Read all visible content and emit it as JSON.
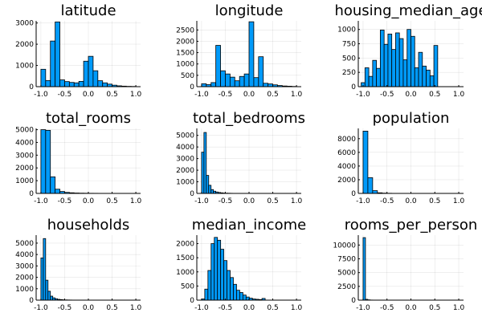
{
  "chart_data": [
    {
      "type": "bar",
      "title": "latitude",
      "xlabel": "",
      "ylabel": "",
      "xlim": [
        -1.1,
        1.1
      ],
      "ylim": [
        0,
        3100
      ],
      "xticks": [
        -1.0,
        -0.5,
        0.0,
        0.5,
        1.0
      ],
      "xtick_labels": [
        "-1.0",
        "-0.5",
        "0.0",
        "0.5",
        "1.0"
      ],
      "yticks": [
        0,
        1000,
        2000,
        3000
      ],
      "ytick_labels": [
        "0",
        "1000",
        "2000",
        "3000"
      ],
      "bin_start": -1.0,
      "bin_width": 0.1,
      "values": [
        820,
        290,
        2150,
        3050,
        320,
        240,
        200,
        180,
        250,
        1200,
        1430,
        750,
        280,
        180,
        120,
        70,
        40,
        25,
        15,
        10
      ]
    },
    {
      "type": "bar",
      "title": "longitude",
      "xlabel": "",
      "ylabel": "",
      "xlim": [
        -1.1,
        1.1
      ],
      "ylim": [
        0,
        2900
      ],
      "xticks": [
        -1.0,
        -0.5,
        0.0,
        0.5,
        1.0
      ],
      "xtick_labels": [
        "-1.0",
        "-0.5",
        "0.0",
        "0.5",
        "1.0"
      ],
      "yticks": [
        0,
        500,
        1000,
        1500,
        2000,
        2500
      ],
      "ytick_labels": [
        "0",
        "500",
        "1000",
        "1500",
        "2000",
        "2500"
      ],
      "bin_start": -1.0,
      "bin_width": 0.1,
      "values": [
        130,
        90,
        180,
        1820,
        700,
        560,
        420,
        260,
        450,
        560,
        2860,
        400,
        1320,
        150,
        120,
        80,
        50,
        30,
        20,
        10
      ]
    },
    {
      "type": "bar",
      "title": "housing_median_age",
      "xlabel": "",
      "ylabel": "",
      "xlim": [
        -1.1,
        1.1
      ],
      "ylim": [
        0,
        1150
      ],
      "xticks": [
        -1.0,
        -0.5,
        0.0,
        0.5,
        1.0
      ],
      "xtick_labels": [
        "-1.0",
        "-0.5",
        "0.0",
        "0.5",
        "1.0"
      ],
      "yticks": [
        0,
        250,
        500,
        750,
        1000
      ],
      "ytick_labels": [
        "0",
        "250",
        "500",
        "750",
        "1000"
      ],
      "bin_start": -1.04,
      "bin_width": 0.08,
      "values": [
        70,
        330,
        180,
        460,
        320,
        990,
        740,
        920,
        650,
        940,
        840,
        470,
        1000,
        880,
        330,
        600,
        360,
        290,
        190,
        720
      ]
    },
    {
      "type": "bar",
      "title": "total_rooms",
      "xlabel": "",
      "ylabel": "",
      "xlim": [
        -1.1,
        1.1
      ],
      "ylim": [
        0,
        5100
      ],
      "xticks": [
        -1.0,
        -0.5,
        0.0,
        0.5,
        1.0
      ],
      "xtick_labels": [
        "-1.0",
        "-0.5",
        "0.0",
        "0.5",
        "1.0"
      ],
      "yticks": [
        0,
        1000,
        2000,
        3000,
        4000,
        5000
      ],
      "ytick_labels": [
        "0",
        "1000",
        "2000",
        "3000",
        "4000",
        "5000"
      ],
      "bin_start": -1.0,
      "bin_width": 0.1,
      "values": [
        5000,
        4950,
        1300,
        330,
        150,
        80,
        50,
        30,
        20,
        15,
        10,
        8,
        5,
        5,
        3,
        3,
        2,
        2,
        1,
        1
      ]
    },
    {
      "type": "bar",
      "title": "total_bedrooms",
      "xlabel": "",
      "ylabel": "",
      "xlim": [
        -1.1,
        1.1
      ],
      "ylim": [
        0,
        5600
      ],
      "xticks": [
        -1.0,
        -0.5,
        0.0,
        0.5,
        1.0
      ],
      "xtick_labels": [
        "-1.0",
        "-0.5",
        "0.0",
        "0.5",
        "1.0"
      ],
      "yticks": [
        0,
        1000,
        2000,
        3000,
        4000,
        5000
      ],
      "ytick_labels": [
        "0",
        "1000",
        "2000",
        "3000",
        "4000",
        "5000"
      ],
      "bin_start": -1.0,
      "bin_width": 0.05,
      "values": [
        3550,
        5250,
        1550,
        700,
        330,
        190,
        120,
        80,
        50,
        30,
        20,
        15,
        10,
        5,
        5,
        3,
        3,
        2,
        2,
        1
      ]
    },
    {
      "type": "bar",
      "title": "population",
      "xlabel": "",
      "ylabel": "",
      "xlim": [
        -1.1,
        1.1
      ],
      "ylim": [
        0,
        9500
      ],
      "xticks": [
        -1.0,
        -0.5,
        0.0,
        0.5,
        1.0
      ],
      "xtick_labels": [
        "-1.0",
        "-0.5",
        "0.0",
        "0.5",
        "1.0"
      ],
      "yticks": [
        0,
        2000,
        4000,
        6000,
        8000
      ],
      "ytick_labels": [
        "0",
        "2000",
        "4000",
        "6000",
        "8000"
      ],
      "bin_start": -1.0,
      "bin_width": 0.1,
      "values": [
        9100,
        2300,
        400,
        90,
        40,
        20,
        10,
        5,
        3,
        2,
        1,
        1,
        1,
        1,
        1,
        1,
        1,
        1,
        1,
        1
      ]
    },
    {
      "type": "bar",
      "title": "households",
      "xlabel": "",
      "ylabel": "",
      "xlim": [
        -1.1,
        1.1
      ],
      "ylim": [
        0,
        5700
      ],
      "xticks": [
        -1.0,
        -0.5,
        0.0,
        0.5,
        1.0
      ],
      "xtick_labels": [
        "-1.0",
        "-0.5",
        "0.0",
        "0.5",
        "1.0"
      ],
      "yticks": [
        0,
        1000,
        2000,
        3000,
        4000,
        5000
      ],
      "ytick_labels": [
        "0",
        "1000",
        "2000",
        "3000",
        "4000",
        "5000"
      ],
      "bin_start": -1.0,
      "bin_width": 0.05,
      "values": [
        3700,
        5400,
        1750,
        780,
        350,
        200,
        120,
        70,
        50,
        30,
        20,
        15,
        10,
        5,
        5,
        3,
        3,
        2,
        2,
        1
      ]
    },
    {
      "type": "bar",
      "title": "median_income",
      "xlabel": "",
      "ylabel": "",
      "xlim": [
        -1.1,
        1.1
      ],
      "ylim": [
        0,
        2300
      ],
      "xticks": [
        -1.0,
        -0.5,
        0.0,
        0.5,
        1.0
      ],
      "xtick_labels": [
        "-1.0",
        "-0.5",
        "0.0",
        "0.5",
        "1.0"
      ],
      "yticks": [
        0,
        500,
        1000,
        1500,
        2000
      ],
      "ytick_labels": [
        "0",
        "500",
        "1000",
        "1500",
        "2000"
      ],
      "bin_start": -1.0,
      "bin_width": 0.067,
      "values": [
        40,
        390,
        1050,
        2000,
        2220,
        2120,
        1800,
        1400,
        1050,
        800,
        560,
        350,
        270,
        180,
        110,
        70,
        40,
        30,
        20,
        60
      ]
    },
    {
      "type": "bar",
      "title": "rooms_per_person",
      "xlabel": "",
      "ylabel": "",
      "xlim": [
        -1.1,
        1.1
      ],
      "ylim": [
        0,
        11800
      ],
      "xticks": [
        -1.0,
        -0.5,
        0.0,
        0.5,
        1.0
      ],
      "xtick_labels": [
        "-1.0",
        "-0.5",
        "0.0",
        "0.5",
        "1.0"
      ],
      "yticks": [
        0,
        2500,
        5000,
        7500,
        10000
      ],
      "ytick_labels": [
        "0",
        "2500",
        "5000",
        "7500",
        "10000"
      ],
      "bin_start": -1.0,
      "bin_width": 0.05,
      "values": [
        11350,
        150,
        50,
        20,
        10,
        5,
        3,
        2,
        1,
        1,
        1,
        1,
        1,
        1,
        1,
        1,
        1,
        1,
        1,
        1
      ]
    }
  ],
  "colors": {
    "bar": "#009af9",
    "edge": "#000000",
    "grid": "#e6e6e6"
  }
}
